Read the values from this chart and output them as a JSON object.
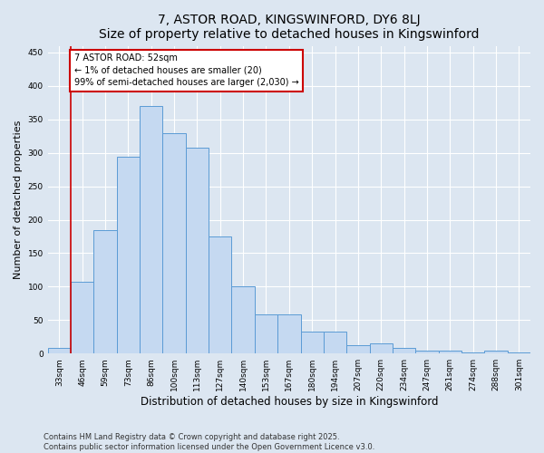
{
  "title": "7, ASTOR ROAD, KINGSWINFORD, DY6 8LJ",
  "subtitle": "Size of property relative to detached houses in Kingswinford",
  "xlabel": "Distribution of detached houses by size in Kingswinford",
  "ylabel": "Number of detached properties",
  "categories": [
    "33sqm",
    "46sqm",
    "59sqm",
    "73sqm",
    "86sqm",
    "100sqm",
    "113sqm",
    "127sqm",
    "140sqm",
    "153sqm",
    "167sqm",
    "180sqm",
    "194sqm",
    "207sqm",
    "220sqm",
    "234sqm",
    "247sqm",
    "261sqm",
    "274sqm",
    "288sqm",
    "301sqm"
  ],
  "values": [
    8,
    107,
    185,
    294,
    370,
    330,
    308,
    175,
    100,
    58,
    58,
    33,
    33,
    13,
    15,
    9,
    5,
    5,
    1,
    4,
    2
  ],
  "bar_color": "#c5d9f1",
  "bar_edge_color": "#5b9bd5",
  "annotation_text": "7 ASTOR ROAD: 52sqm\n← 1% of detached houses are smaller (20)\n99% of semi-detached houses are larger (2,030) →",
  "annotation_box_color": "#ffffff",
  "annotation_box_edge_color": "#cc0000",
  "vline_color": "#cc0000",
  "vline_x": 0.5,
  "ylim": [
    0,
    460
  ],
  "yticks": [
    0,
    50,
    100,
    150,
    200,
    250,
    300,
    350,
    400,
    450
  ],
  "background_color": "#dce6f1",
  "plot_bg_color": "#dce6f1",
  "footer_line1": "Contains HM Land Registry data © Crown copyright and database right 2025.",
  "footer_line2": "Contains public sector information licensed under the Open Government Licence v3.0.",
  "title_fontsize": 10,
  "subtitle_fontsize": 9,
  "tick_fontsize": 6.5,
  "xlabel_fontsize": 8.5,
  "ylabel_fontsize": 8,
  "footer_fontsize": 6,
  "annotation_fontsize": 7
}
